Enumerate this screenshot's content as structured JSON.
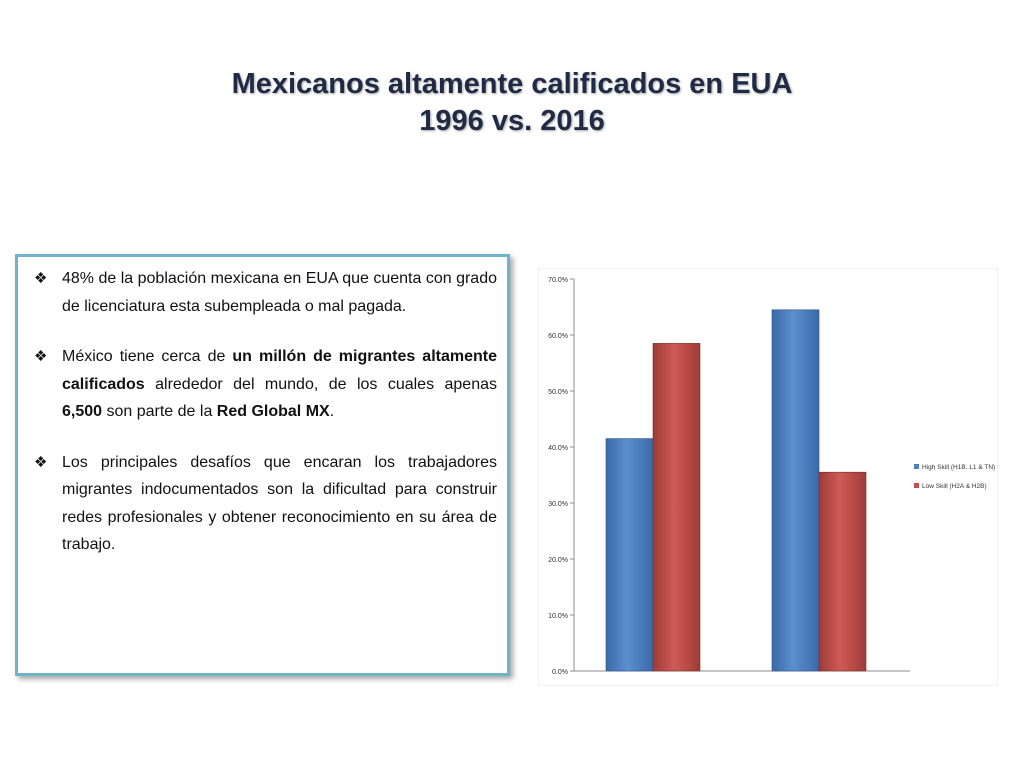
{
  "header": {
    "title_line1": "Mexicanos altamente calificados en EUA",
    "title_line2": "1996 vs. 2016"
  },
  "bullets": [
    {
      "p1": "48% de la población mexicana en EUA que cuenta con grado de licenciatura esta subempleada o mal pagada."
    },
    {
      "p1": "México tiene cerca de ",
      "b1": "un millón de migrantes altamente calificados",
      "p2": " alrededor del mundo, de los cuales apenas ",
      "b2": "6,500",
      "p3": " son parte de la ",
      "b3": "Red Global MX",
      "p4": "."
    },
    {
      "p1": "Los principales desafíos que encaran los trabajadores migrantes indocumentados son la dificultad para construir redes profesionales y obtener reconocimiento en su área de trabajo."
    }
  ],
  "chart_data": {
    "type": "bar",
    "categories": [
      "",
      ""
    ],
    "series": [
      {
        "name": "High Skill (H1B, L1 & TN)",
        "values": [
          41.5,
          64.5
        ],
        "color": "#4f81bd"
      },
      {
        "name": "Low Skill  (H2A & H2B)",
        "values": [
          58.5,
          35.5
        ],
        "color": "#c0504d"
      }
    ],
    "ylim": [
      0,
      70
    ],
    "yticks": [
      "0.0%",
      "10.0%",
      "20.0%",
      "30.0%",
      "40.0%",
      "50.0%",
      "60.0%",
      "70.0%"
    ],
    "grid": false,
    "legend": "right"
  }
}
